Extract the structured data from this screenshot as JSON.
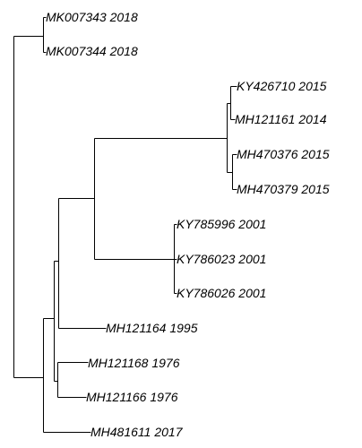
{
  "tree": {
    "type": "phylogenetic-tree",
    "line_color": "#000000",
    "text_color": "#000000",
    "background": "#ffffff",
    "tips": [
      {
        "id": "t1",
        "label": "MK007343 2018"
      },
      {
        "id": "t2",
        "label": "MK007344 2018"
      },
      {
        "id": "t3",
        "label": "KY426710 2015"
      },
      {
        "id": "t4",
        "label": "MH121161 2014"
      },
      {
        "id": "t5",
        "label": "MH470376 2015"
      },
      {
        "id": "t6",
        "label": "MH470379 2015"
      },
      {
        "id": "t7",
        "label": "KY785996 2001"
      },
      {
        "id": "t8",
        "label": "KY786023 2001"
      },
      {
        "id": "t9",
        "label": "KY786026 2001"
      },
      {
        "id": "t10",
        "label": "MH121164 1995"
      },
      {
        "id": "t11",
        "label": "MH121168 1976"
      },
      {
        "id": "t12",
        "label": "MH121166 1976"
      },
      {
        "id": "t13",
        "label": "MH481611 2017"
      }
    ]
  }
}
